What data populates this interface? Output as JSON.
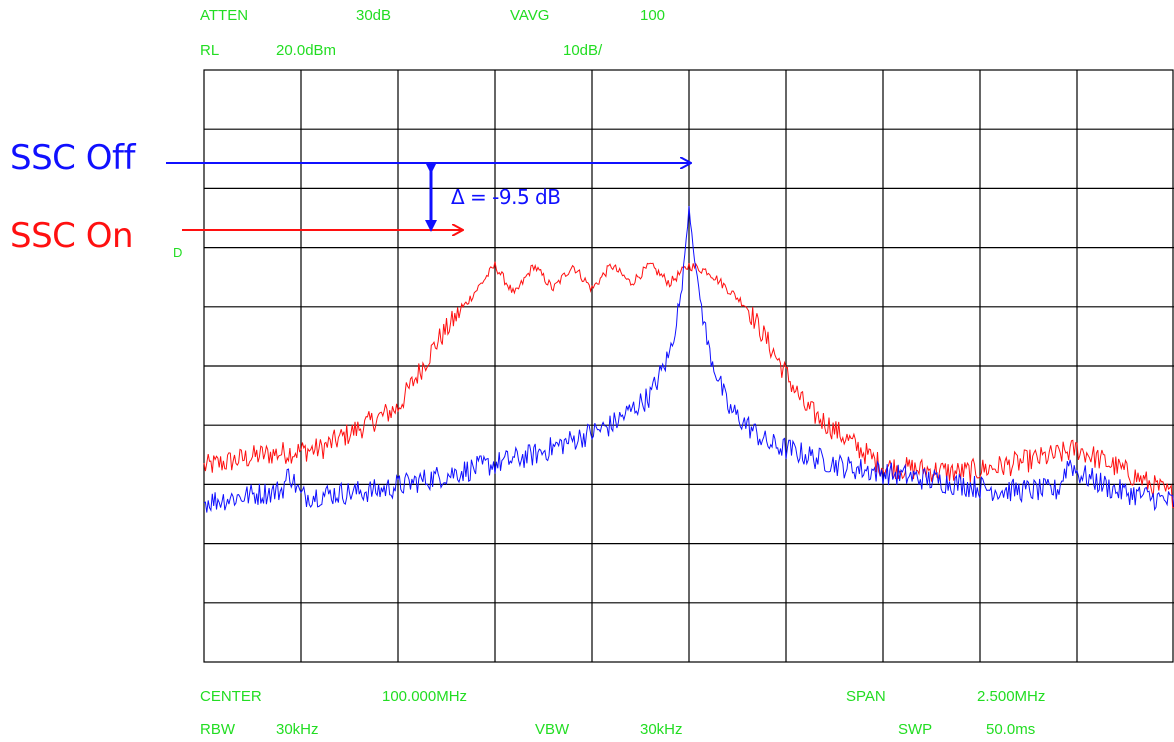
{
  "header": {
    "atten_label": "ATTEN",
    "atten_value": "30dB",
    "vavg_label": "VAVG",
    "vavg_value": "100",
    "rl_label": "RL",
    "rl_value": "20.0dBm",
    "scale": "10dB/",
    "marker_d": "D"
  },
  "footer": {
    "center_label": "CENTER",
    "center_value": "100.000MHz",
    "span_label": "SPAN",
    "span_value": "2.500MHz",
    "rbw_label": "RBW",
    "rbw_value": "30kHz",
    "vbw_label": "VBW",
    "vbw_value": "30kHz",
    "swp_label": "SWP",
    "swp_value": "50.0ms"
  },
  "annotations": {
    "ssc_off": "SSC Off",
    "ssc_on": "SSC On",
    "delta": "Δ = -9.5 dB"
  },
  "colors": {
    "ssc_off": "#1010ff",
    "ssc_on": "#ff1010",
    "header_text": "#22dd22",
    "grid": "#000000"
  },
  "chart_data": {
    "type": "line",
    "title": "",
    "xlabel": "",
    "ylabel": "",
    "center_mhz": 100.0,
    "span_mhz": 2.5,
    "reference_level_dbm": 20.0,
    "db_per_div": 10,
    "x_divisions": 10,
    "y_divisions": 10,
    "xlim": [
      98.75,
      101.25
    ],
    "ylim": [
      -80,
      20
    ],
    "grid": true,
    "series": [
      {
        "name": "SSC Off",
        "color": "#1010ff",
        "x": [
          98.75,
          98.95,
          98.97,
          99.0,
          99.2,
          99.4,
          99.6,
          99.8,
          99.9,
          99.95,
          99.98,
          100.0,
          100.02,
          100.05,
          100.1,
          100.2,
          100.4,
          100.6,
          100.8,
          100.95,
          100.98,
          101.0,
          101.1,
          101.25
        ],
        "values": [
          -53,
          -51,
          -48,
          -52,
          -51,
          -48,
          -45,
          -40,
          -35,
          -28,
          -18,
          -3,
          -15,
          -27,
          -37,
          -43,
          -47,
          -49,
          -51,
          -51,
          -46,
          -48,
          -51,
          -53
        ]
      },
      {
        "name": "SSC On",
        "color": "#ff1010",
        "x": [
          98.75,
          98.9,
          99.05,
          99.25,
          99.35,
          99.5,
          99.55,
          99.6,
          99.65,
          99.7,
          99.75,
          99.8,
          99.85,
          99.9,
          99.95,
          100.0,
          100.05,
          100.15,
          100.3,
          100.5,
          100.7,
          100.8,
          100.95,
          101.0,
          101.1,
          101.25
        ],
        "values": [
          -47,
          -45,
          -44,
          -37,
          -26,
          -13,
          -18,
          -13,
          -17,
          -13,
          -17,
          -13,
          -16,
          -13,
          -16,
          -13,
          -14,
          -20,
          -37,
          -47,
          -48,
          -47,
          -45,
          -44,
          -47,
          -52
        ]
      }
    ]
  }
}
